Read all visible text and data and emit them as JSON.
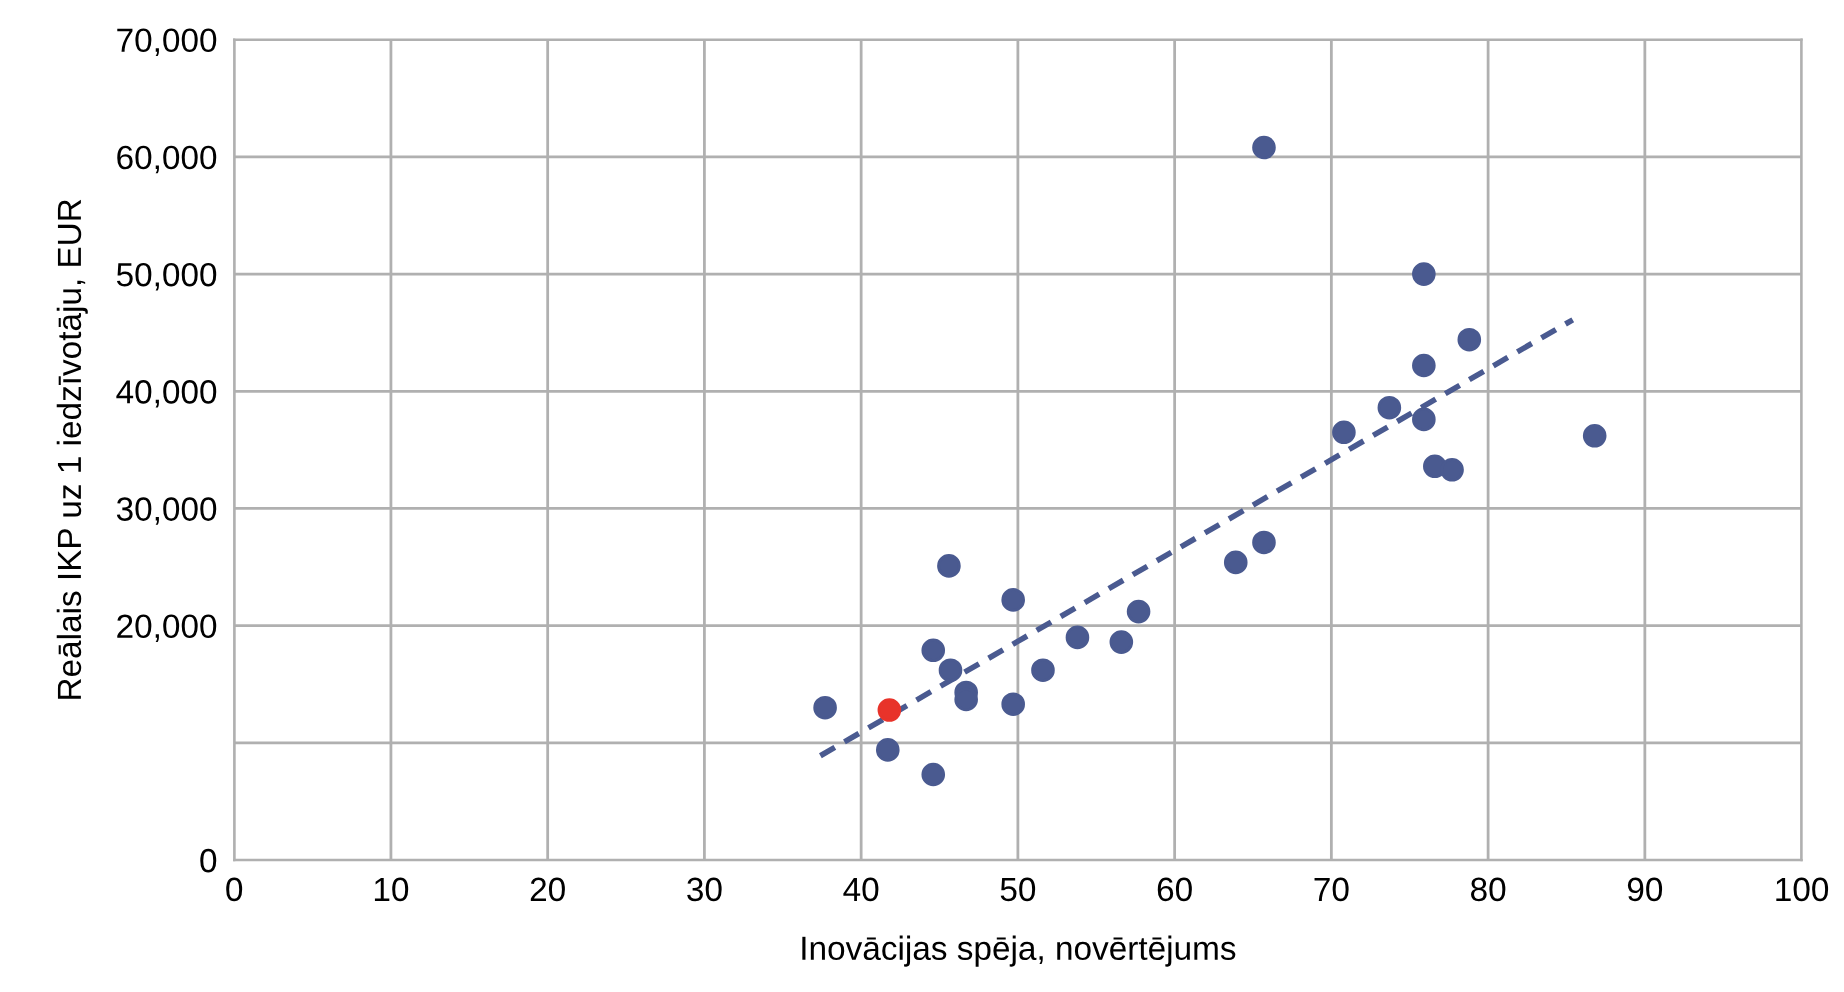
{
  "chart_data": {
    "type": "scatter",
    "xlabel": "Inovācijas spēja, novērtējums",
    "ylabel": "Reālais IKP uz 1 iedzīvotāju, EUR",
    "xlim": [
      0,
      100
    ],
    "xticks": [
      0,
      10,
      20,
      30,
      40,
      50,
      60,
      70,
      80,
      90,
      100
    ],
    "ylim": [
      0,
      70000
    ],
    "yticks": [
      0,
      {
        "value": 10000,
        "label": null
      },
      {
        "value": 20000,
        "label": "20,000"
      },
      {
        "value": 30000,
        "label": "30,000"
      },
      {
        "value": 40000,
        "label": "40,000"
      },
      {
        "value": 50000,
        "label": "50,000"
      },
      {
        "value": 60000,
        "label": "60,000"
      },
      {
        "value": 70000,
        "label": "70,000"
      }
    ],
    "grid": true,
    "marker": "circle",
    "series": [
      {
        "color": "#4a5a90",
        "x": [
          37.7,
          41.7,
          44.6,
          45.6,
          45.7,
          44.6,
          46.7,
          46.7,
          49.7,
          49.7,
          51.6,
          53.8,
          56.6,
          57.7,
          63.9,
          65.7,
          65.7,
          70.8,
          73.7,
          75.9,
          75.9,
          75.9,
          76.6,
          77.7,
          78.8,
          86.8
        ],
        "values": [
          13000,
          9400,
          17900,
          25100,
          16200,
          7300,
          14300,
          13700,
          22200,
          13300,
          16200,
          19000,
          18600,
          21200,
          25400,
          27100,
          60800,
          36500,
          38600,
          50000,
          42200,
          37600,
          33600,
          33300,
          44400,
          36200
        ]
      },
      {
        "color": "#e8332a",
        "x": [
          41.8
        ],
        "values": [
          12800
        ]
      },
      {
        "type": "line",
        "line_style": "dashed",
        "marker": "none",
        "color": "#4a5a90",
        "x": [
          37.4,
          85.4
        ],
        "values": [
          8900,
          46100
        ]
      }
    ]
  }
}
